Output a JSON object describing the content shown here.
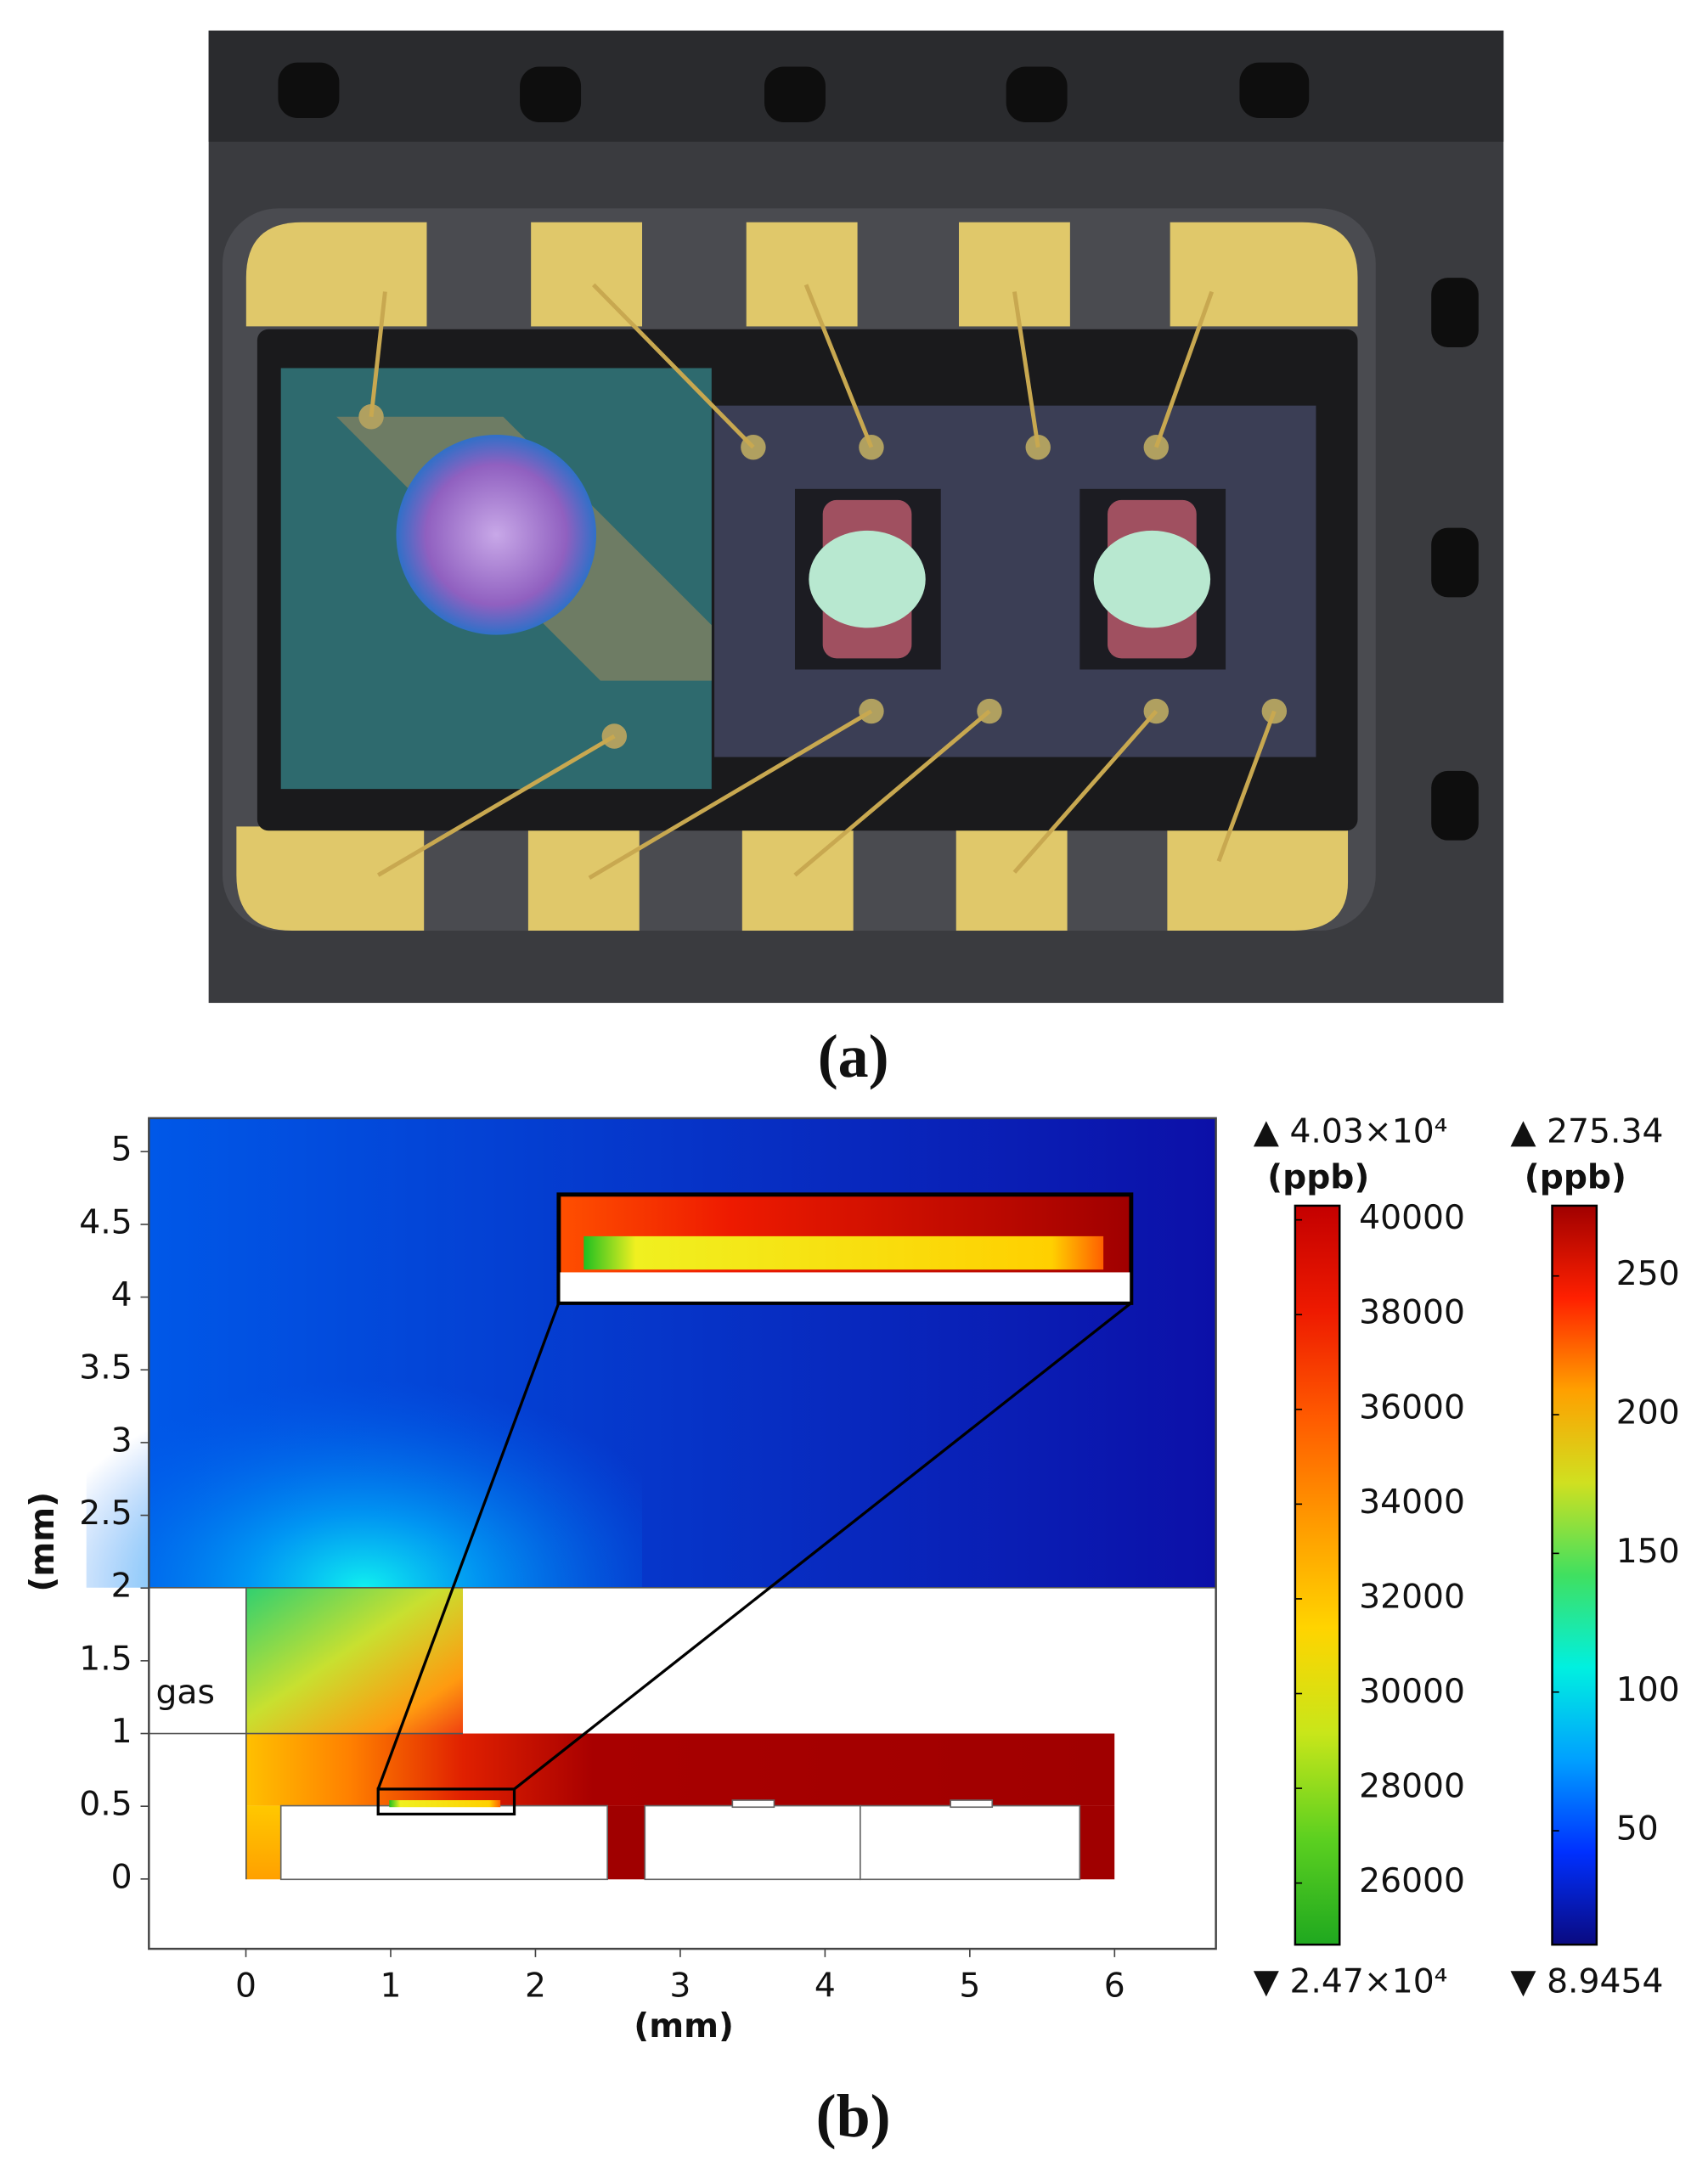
{
  "panels": [
    {
      "label": "(a)"
    },
    {
      "label": "(b)"
    }
  ],
  "chart_data": {
    "type": "heatmap",
    "xlabel": "(mm)",
    "ylabel": "(mm)",
    "xlim": [
      -0.67,
      6.7
    ],
    "ylim": [
      -0.48,
      5.23
    ],
    "xticks": [
      0,
      1,
      2,
      3,
      4,
      5,
      6
    ],
    "yticks": [
      0,
      0.5,
      1,
      1.5,
      2,
      2.5,
      3,
      3.5,
      4,
      4.5,
      5
    ],
    "annotations": [
      "gas"
    ],
    "colorbars": [
      {
        "unit": "(ppb)",
        "max_label": "▲ 4.03×10⁴",
        "min_label": "▼ 2.47×10⁴",
        "lim": [
          24700,
          40300
        ],
        "ticks": [
          26000,
          28000,
          30000,
          32000,
          34000,
          36000,
          38000,
          40000
        ],
        "colors": [
          "#1fa81f",
          "#5cd020",
          "#c8e61a",
          "#ffd400",
          "#ff9a00",
          "#ff5a00",
          "#ee1a00",
          "#c40000"
        ]
      },
      {
        "unit": "(ppb)",
        "max_label": "▲ 275.34",
        "min_label": "▼ 8.9454",
        "lim": [
          8.9454,
          275.34
        ],
        "ticks": [
          50,
          100,
          150,
          200,
          250
        ],
        "colors": [
          "#0a0a80",
          "#0030ff",
          "#00a0ff",
          "#00f0e0",
          "#40e060",
          "#d0e020",
          "#ffa000",
          "#ff2000",
          "#a00000"
        ]
      }
    ]
  }
}
